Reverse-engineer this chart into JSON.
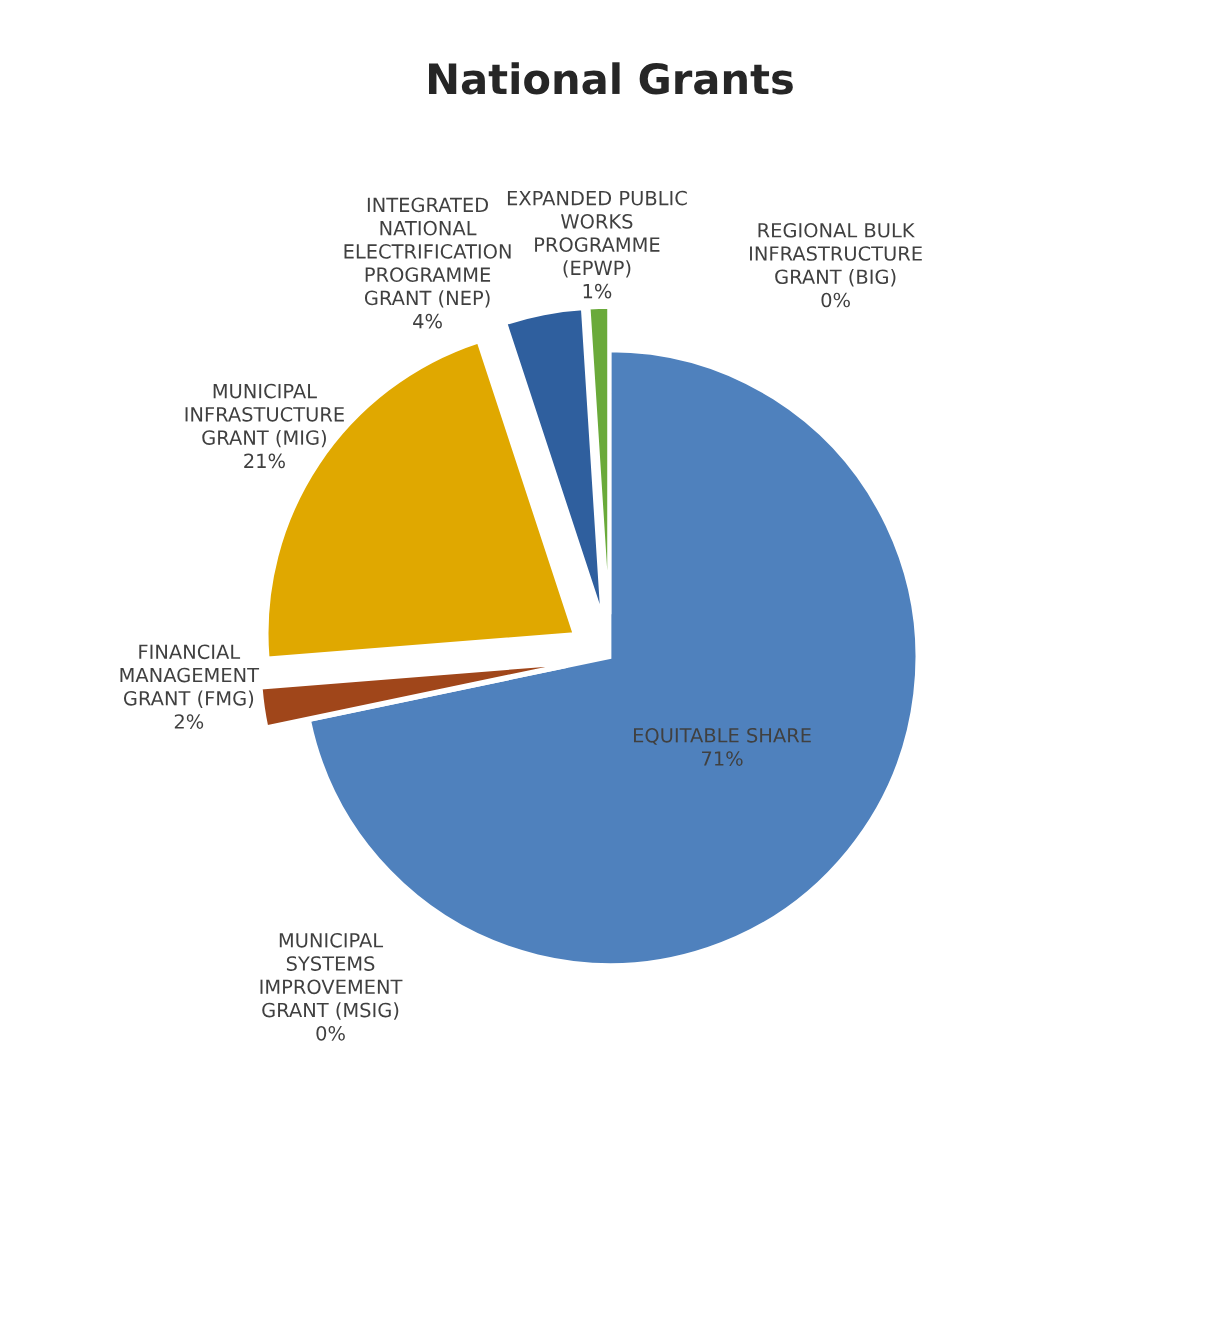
{
  "chart_data": {
    "type": "pie",
    "title": "National Grants",
    "categories": [
      "EQUITABLE SHARE",
      "MUNICIPAL\nSYSTEMS\nIMPROVEMENT\nGRANT (MSIG)",
      "FINANCIAL\nMANAGEMENT\nGRANT (FMG)",
      "MUNICIPAL\nINFRASTUCTURE\nGRANT (MIG)",
      "INTEGRATED\nNATIONAL\nELECTRIFICATION\nPROGRAMME\nGRANT (NEP)",
      "EXPANDED PUBLIC\nWORKS\nPROGRAMME\n(EPWP)",
      "REGIONAL BULK\nINFRASTRUCTURE\nGRANT (BIG)"
    ],
    "values": [
      71,
      0,
      2,
      21,
      4,
      1,
      0
    ],
    "value_labels": [
      "71%",
      "0%",
      "2%",
      "21%",
      "4%",
      "1%",
      "0%"
    ],
    "colors": [
      "#4f81bd",
      "#8064a2",
      "#a0461a",
      "#e0a800",
      "#2f5f9e",
      "#6aaa3a",
      "#c0504d"
    ]
  }
}
